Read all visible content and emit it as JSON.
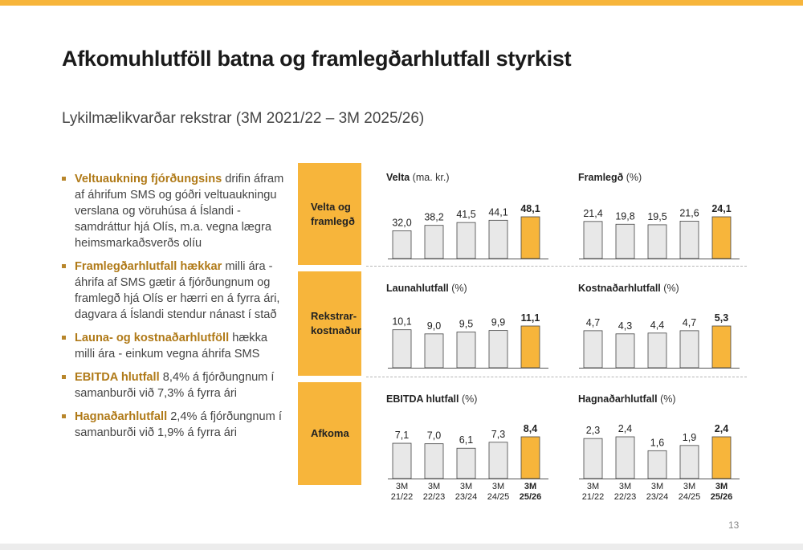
{
  "header": {
    "title": "Afkomuhlutföll batna og framlegðarhlutfall styrkist",
    "subtitle": "Lykilmælikvarðar rekstrar (3M 2021/22 – 3M 2025/26)"
  },
  "bullets": [
    {
      "bold": "Veltuaukning fjórðungsins",
      "text": " drifin áfram af áhrifum SMS og góðri veltuaukningu verslana og vöruhúsa á Íslandi - samdráttur hjá Olís, m.a. vegna lægra heimsmarkaðsverðs olíu"
    },
    {
      "bold": "Framlegðarhlutfall hækkar",
      "text": " milli ára - áhrifa af SMS gætir á fjórðungnum og framlegð hjá Olís er hærri en á fyrra ári, dagvara á Íslandi stendur nánast í stað"
    },
    {
      "bold": "Launa- og kostnaðarhlutföll",
      "text": " hækka milli ára - einkum vegna áhrifa SMS"
    },
    {
      "bold": "EBITDA hlutfall",
      "text": " 8,4% á fjórðungnum í samanburði við 7,3% á fyrra ári"
    },
    {
      "bold": "Hagnaðarhlutfall",
      "text": " 2,4% á fjórðungnum í samanburði við 1,9% á fyrra ári"
    }
  ],
  "categories_labels": {
    "row1": [
      "Velta og",
      "framlegð"
    ],
    "row2": [
      "Rekstrar-",
      "kostnaður"
    ],
    "row3": [
      "Afkoma"
    ]
  },
  "colors": {
    "accent": "#f7b53b",
    "bar": "#e8e8e8",
    "highlight_text": "#b07a18"
  },
  "page_number": "13",
  "chart_data": [
    {
      "type": "bar",
      "title": "Velta",
      "unit": "(ma. kr.)",
      "categories": [
        "3M 21/22",
        "3M 22/23",
        "3M 23/24",
        "3M 24/25",
        "3M 25/26"
      ],
      "values": [
        32.0,
        38.2,
        41.5,
        44.1,
        48.1
      ],
      "labels": [
        "32,0",
        "38,2",
        "41,5",
        "44,1",
        "48,1"
      ]
    },
    {
      "type": "bar",
      "title": "Framlegð",
      "unit": "(%)",
      "categories": [
        "3M 21/22",
        "3M 22/23",
        "3M 23/24",
        "3M 24/25",
        "3M 25/26"
      ],
      "values": [
        21.4,
        19.8,
        19.5,
        21.6,
        24.1
      ],
      "labels": [
        "21,4",
        "19,8",
        "19,5",
        "21,6",
        "24,1"
      ]
    },
    {
      "type": "bar",
      "title": "Launahlutfall",
      "unit": "(%)",
      "categories": [
        "3M 21/22",
        "3M 22/23",
        "3M 23/24",
        "3M 24/25",
        "3M 25/26"
      ],
      "values": [
        10.1,
        9.0,
        9.5,
        9.9,
        11.1
      ],
      "labels": [
        "10,1",
        "9,0",
        "9,5",
        "9,9",
        "11,1"
      ]
    },
    {
      "type": "bar",
      "title": "Kostnaðarhlutfall",
      "unit": "(%)",
      "categories": [
        "3M 21/22",
        "3M 22/23",
        "3M 23/24",
        "3M 24/25",
        "3M 25/26"
      ],
      "values": [
        4.7,
        4.3,
        4.4,
        4.7,
        5.3
      ],
      "labels": [
        "4,7",
        "4,3",
        "4,4",
        "4,7",
        "5,3"
      ]
    },
    {
      "type": "bar",
      "title": "EBITDA hlutfall",
      "unit": "(%)",
      "categories": [
        "3M 21/22",
        "3M 22/23",
        "3M 23/24",
        "3M 24/25",
        "3M 25/26"
      ],
      "values": [
        7.1,
        7.0,
        6.1,
        7.3,
        8.4
      ],
      "labels": [
        "7,1",
        "7,0",
        "6,1",
        "7,3",
        "8,4"
      ]
    },
    {
      "type": "bar",
      "title": "Hagnaðarhlutfall",
      "unit": "(%)",
      "categories": [
        "3M 21/22",
        "3M 22/23",
        "3M 23/24",
        "3M 24/25",
        "3M 25/26"
      ],
      "values": [
        2.3,
        2.4,
        1.6,
        1.9,
        2.4
      ],
      "labels": [
        "2,3",
        "2,4",
        "1,6",
        "1,9",
        "2,4"
      ]
    }
  ],
  "x_axis_labels": [
    [
      "3M",
      "21/22"
    ],
    [
      "3M",
      "22/23"
    ],
    [
      "3M",
      "23/24"
    ],
    [
      "3M",
      "24/25"
    ],
    [
      "3M",
      "25/26"
    ]
  ]
}
